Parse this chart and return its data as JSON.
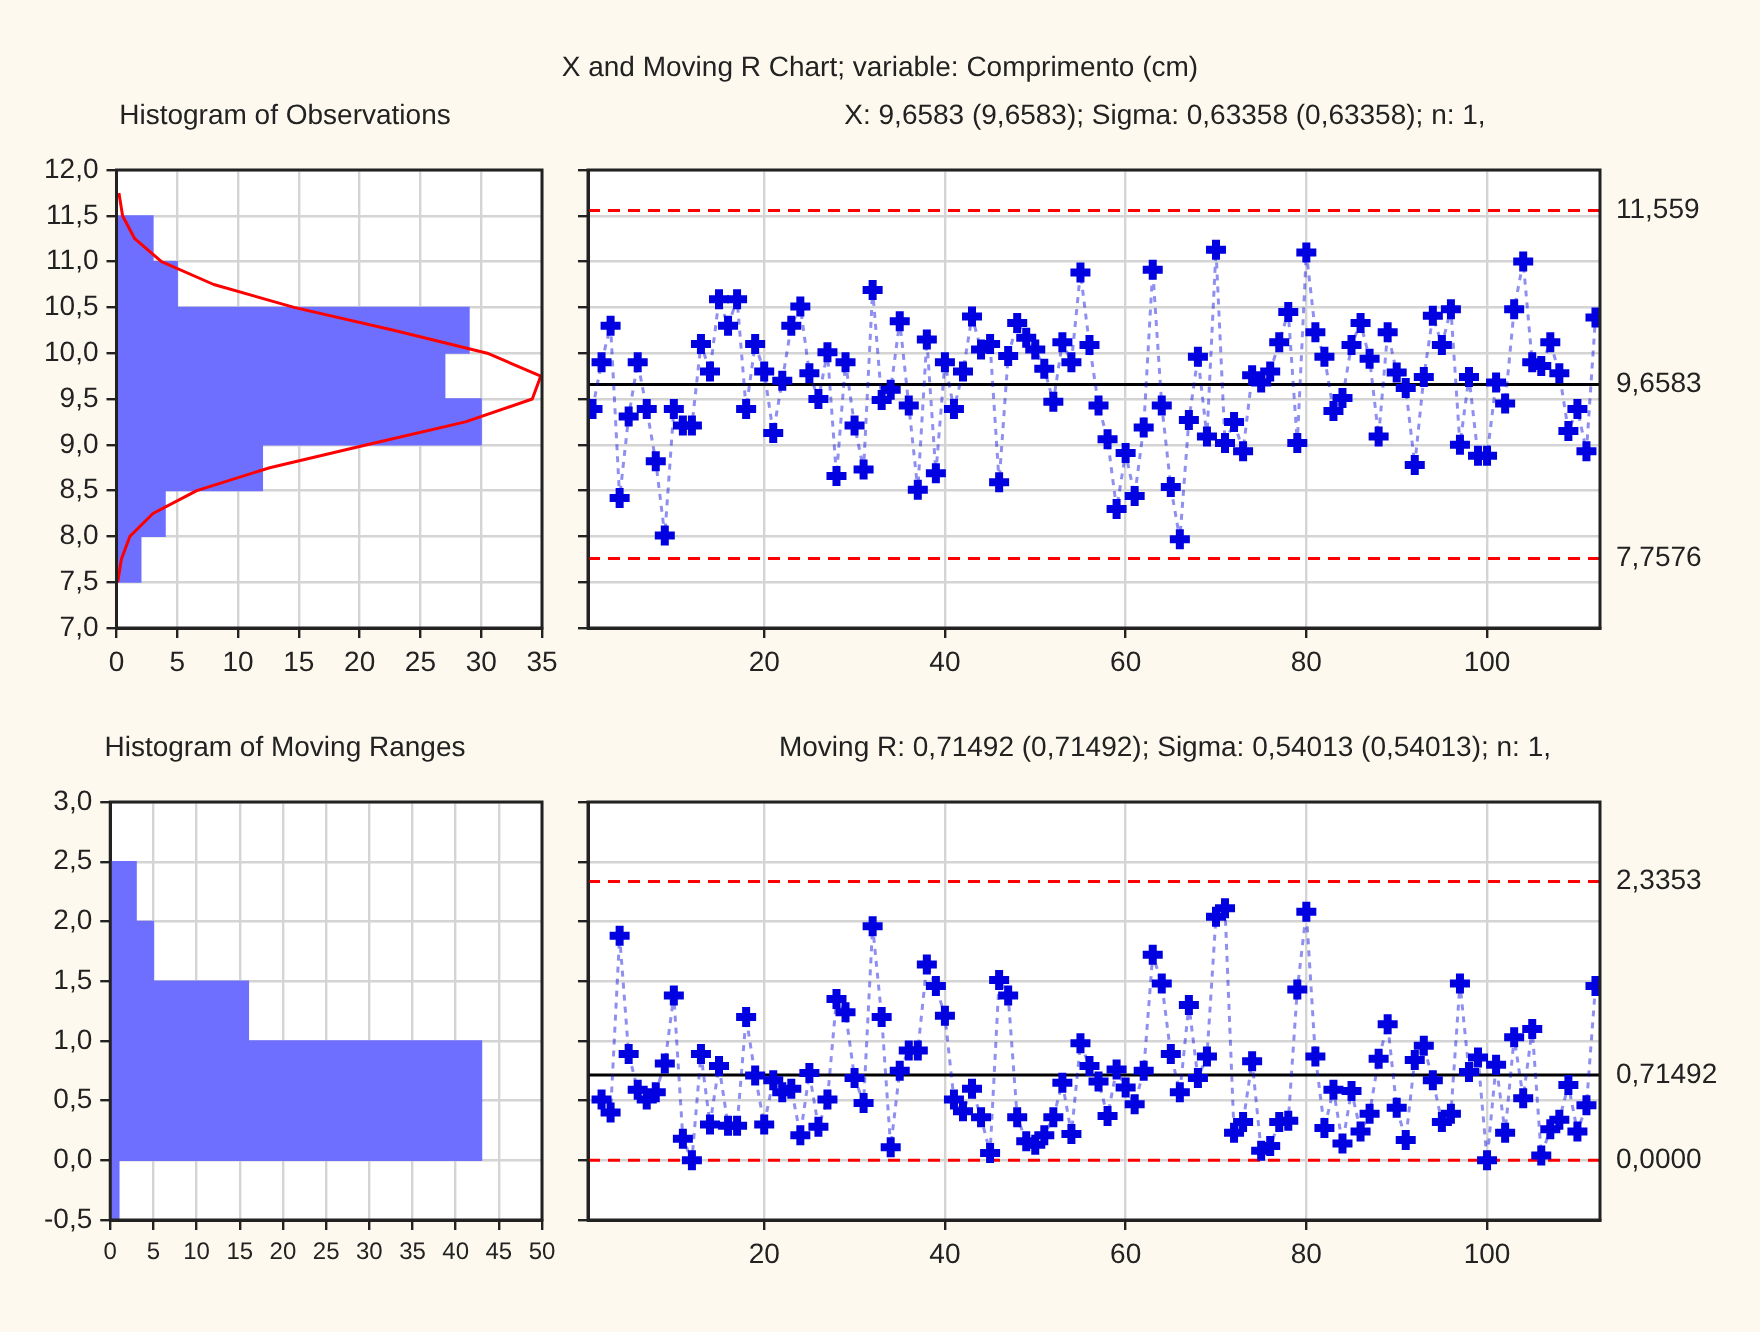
{
  "chart_data": [
    {
      "type": "histogram",
      "orientation": "horizontal",
      "title": "Histogram of Observations",
      "bins": [
        7.5,
        8,
        8.5,
        9,
        9.5,
        10,
        10.5,
        11,
        11.5
      ],
      "series": [
        {
          "type": "histogram",
          "color": "#6f6fff",
          "values": [
            2,
            4,
            12,
            30,
            27,
            29,
            5,
            3
          ]
        },
        {
          "type": "line",
          "color": "#ff0000",
          "x": [
            7.5,
            7.75,
            8,
            8.25,
            8.5,
            8.75,
            9,
            9.25,
            9.5,
            9.75,
            10,
            10.25,
            10.5,
            10.75,
            11,
            11.25,
            11.5,
            11.75
          ],
          "values": [
            0.1,
            0.4,
            1.1,
            3.0,
            6.6,
            12.6,
            20.6,
            28.7,
            34.2,
            34.9,
            30.5,
            22.8,
            14.6,
            8.0,
            3.7,
            1.5,
            0.5,
            0.2
          ]
        }
      ],
      "xlim": [
        0,
        35
      ],
      "xticks": [
        0,
        5,
        10,
        15,
        20,
        25,
        30,
        35
      ],
      "ylim": [
        7,
        12
      ],
      "yticks": [
        {
          "value": 7,
          "label": "7,0"
        },
        {
          "value": 7.5,
          "label": "7,5"
        },
        {
          "value": 8,
          "label": "8,0"
        },
        {
          "value": 8.5,
          "label": "8,5"
        },
        {
          "value": 9,
          "label": "9,0"
        },
        {
          "value": 9.5,
          "label": "9,5"
        },
        {
          "value": 10,
          "label": "10,0"
        },
        {
          "value": 10.5,
          "label": "10,5"
        },
        {
          "value": 11,
          "label": "11,0"
        },
        {
          "value": 11.5,
          "label": "11,5"
        },
        {
          "value": 12,
          "label": "12,0"
        }
      ],
      "grid": true,
      "marker": "none"
    },
    {
      "type": "line",
      "title": "X and Moving R Chart; variable:  Comprimento (cm)",
      "subtitle": "X: 9,6583 (9,6583); Sigma: 0,63358 (0,63358); n: 1,",
      "series": [
        {
          "color": "#0000e0",
          "x": [
            1,
            2,
            3,
            4,
            5,
            6,
            7,
            8,
            9,
            10,
            11,
            12,
            13,
            14,
            15,
            16,
            17,
            18,
            19,
            20,
            21,
            22,
            23,
            24,
            25,
            26,
            27,
            28,
            29,
            30,
            31,
            32,
            33,
            34,
            35,
            36,
            37,
            38,
            39,
            40,
            41,
            42,
            43,
            44,
            45,
            46,
            47,
            48,
            49,
            50,
            51,
            52,
            53,
            54,
            55,
            56,
            57,
            58,
            59,
            60,
            61,
            62,
            63,
            64,
            65,
            66,
            67,
            68,
            69,
            70,
            71,
            72,
            73,
            74,
            75,
            76,
            77,
            78,
            79,
            80,
            81,
            82,
            83,
            84,
            85,
            86,
            87,
            88,
            89,
            90,
            91,
            92,
            93,
            94,
            95,
            96,
            97,
            98,
            99,
            100,
            101,
            102,
            103,
            104,
            105,
            106,
            107,
            108,
            109,
            110,
            111,
            112
          ],
          "values": [
            9.39,
            9.9,
            10.3,
            8.42,
            9.31,
            9.9,
            9.39,
            8.82,
            8.01,
            9.39,
            9.21,
            9.21,
            10.1,
            9.8,
            10.59,
            10.3,
            10.59,
            9.39,
            10.1,
            9.8,
            9.13,
            9.7,
            10.3,
            10.51,
            9.78,
            9.5,
            10.01,
            8.66,
            9.9,
            9.21,
            8.73,
            10.69,
            9.49,
            9.6,
            10.35,
            9.43,
            8.51,
            10.15,
            8.69,
            9.9,
            9.39,
            9.8,
            10.4,
            10.04,
            10.1,
            8.59,
            9.97,
            10.33,
            10.17,
            10.04,
            9.83,
            9.47,
            10.12,
            9.9,
            10.88,
            10.09,
            9.43,
            9.06,
            8.3,
            8.91,
            8.44,
            9.19,
            10.91,
            9.43,
            8.54,
            7.97,
            9.27,
            9.96,
            9.09,
            11.13,
            9.02,
            9.25,
            8.93,
            9.76,
            9.68,
            9.8,
            10.12,
            10.45,
            9.02,
            11.1,
            10.23,
            9.96,
            9.37,
            9.51,
            10.09,
            10.33,
            9.94,
            9.09,
            10.23,
            9.79,
            9.62,
            8.78,
            9.74,
            10.41,
            10.09,
            10.48,
            9.0,
            9.74,
            8.88,
            8.88,
            9.68,
            9.45,
            10.48,
            11.0,
            9.9,
            9.86,
            10.12,
            9.78,
            9.15,
            9.39,
            8.93,
            10.39
          ]
        }
      ],
      "xlim": [
        0.5,
        112.5
      ],
      "xticks": [
        20,
        40,
        60,
        80,
        100
      ],
      "ylim": [
        7,
        12
      ],
      "yticks": [
        7,
        7.5,
        8,
        8.5,
        9,
        9.5,
        10,
        10.5,
        11,
        11.5,
        12
      ],
      "tick_labels": "x",
      "grid": true,
      "marker": "cross",
      "line_style": "dotted",
      "ref_lines": [
        {
          "axis": "y",
          "value": 11.559,
          "label": "11,559",
          "color": "#ff0000",
          "line_style": "dashed"
        },
        {
          "axis": "y",
          "value": 9.6583,
          "label": "9,6583",
          "color": "#000000",
          "line_style": "solid"
        },
        {
          "axis": "y",
          "value": 7.7576,
          "label": "7,7576",
          "color": "#ff0000",
          "line_style": "dashed"
        }
      ]
    },
    {
      "type": "histogram",
      "orientation": "horizontal",
      "title": "Histogram of Moving Ranges",
      "bins": [
        -0.5,
        0,
        0.5,
        1,
        1.5,
        2,
        2.5
      ],
      "series": [
        {
          "type": "histogram",
          "color": "#6f6fff",
          "values": [
            1,
            43,
            43,
            16,
            5,
            3
          ]
        }
      ],
      "xlim": [
        0,
        50
      ],
      "xticks": [
        0,
        5,
        10,
        15,
        20,
        25,
        30,
        35,
        40,
        45,
        50
      ],
      "ylim": [
        -0.5,
        3
      ],
      "yticks": [
        {
          "value": -0.5,
          "label": "-0,5"
        },
        {
          "value": 0,
          "label": "0,0"
        },
        {
          "value": 0.5,
          "label": "0,5"
        },
        {
          "value": 1,
          "label": "1,0"
        },
        {
          "value": 1.5,
          "label": "1,5"
        },
        {
          "value": 2,
          "label": "2,0"
        },
        {
          "value": 2.5,
          "label": "2,5"
        },
        {
          "value": 3,
          "label": "3,0"
        }
      ],
      "grid": true
    },
    {
      "type": "line",
      "title": "Moving R: 0,71492 (0,71492); Sigma: 0,54013 (0,54013); n: 1,",
      "series": [
        {
          "color": "#0000e0",
          "x": [
            2,
            3,
            4,
            5,
            6,
            7,
            8,
            9,
            10,
            11,
            12,
            13,
            14,
            15,
            16,
            17,
            18,
            19,
            20,
            21,
            22,
            23,
            24,
            25,
            26,
            27,
            28,
            29,
            30,
            31,
            32,
            33,
            34,
            35,
            36,
            37,
            38,
            39,
            40,
            41,
            42,
            43,
            44,
            45,
            46,
            47,
            48,
            49,
            50,
            51,
            52,
            53,
            54,
            55,
            56,
            57,
            58,
            59,
            60,
            61,
            62,
            63,
            64,
            65,
            66,
            67,
            68,
            69,
            70,
            71,
            72,
            73,
            74,
            75,
            76,
            77,
            78,
            79,
            80,
            81,
            82,
            83,
            84,
            85,
            86,
            87,
            88,
            89,
            90,
            91,
            92,
            93,
            94,
            95,
            96,
            97,
            98,
            99,
            100,
            101,
            102,
            103,
            104,
            105,
            106,
            107,
            108,
            109,
            110,
            111,
            112
          ],
          "values": [
            0.51,
            0.4,
            1.88,
            0.89,
            0.59,
            0.51,
            0.57,
            0.81,
            1.38,
            0.18,
            0.0,
            0.89,
            0.3,
            0.79,
            0.29,
            0.29,
            1.2,
            0.71,
            0.3,
            0.67,
            0.57,
            0.6,
            0.21,
            0.73,
            0.28,
            0.51,
            1.35,
            1.24,
            0.69,
            0.48,
            1.96,
            1.2,
            0.11,
            0.75,
            0.92,
            0.92,
            1.64,
            1.46,
            1.21,
            0.51,
            0.41,
            0.6,
            0.36,
            0.06,
            1.51,
            1.38,
            0.36,
            0.16,
            0.13,
            0.21,
            0.36,
            0.65,
            0.22,
            0.98,
            0.79,
            0.66,
            0.37,
            0.76,
            0.61,
            0.47,
            0.75,
            1.72,
            1.48,
            0.89,
            0.57,
            1.3,
            0.69,
            0.87,
            2.04,
            2.11,
            0.23,
            0.32,
            0.83,
            0.08,
            0.12,
            0.32,
            0.33,
            1.43,
            2.08,
            0.87,
            0.27,
            0.59,
            0.14,
            0.58,
            0.24,
            0.39,
            0.85,
            1.14,
            0.44,
            0.17,
            0.84,
            0.96,
            0.67,
            0.32,
            0.39,
            1.48,
            0.74,
            0.86,
            0.0,
            0.8,
            0.23,
            1.03,
            0.52,
            1.1,
            0.04,
            0.26,
            0.34,
            0.63,
            0.24,
            0.46,
            1.46
          ]
        }
      ],
      "xlim": [
        0.5,
        112.5
      ],
      "xticks": [
        20,
        40,
        60,
        80,
        100
      ],
      "ylim": [
        -0.5,
        3
      ],
      "yticks": [
        -0.5,
        0,
        0.5,
        1,
        1.5,
        2,
        2.5,
        3
      ],
      "tick_labels": "x",
      "grid": true,
      "marker": "cross",
      "line_style": "dotted",
      "ref_lines": [
        {
          "axis": "y",
          "value": 2.3353,
          "label": "2,3353",
          "color": "#ff0000",
          "line_style": "dashed"
        },
        {
          "axis": "y",
          "value": 0.71492,
          "label": "0,71492",
          "color": "#000000",
          "line_style": "solid"
        },
        {
          "axis": "y",
          "value": 0,
          "label": "0,0000",
          "color": "#ff0000",
          "line_style": "dashed"
        }
      ]
    }
  ]
}
